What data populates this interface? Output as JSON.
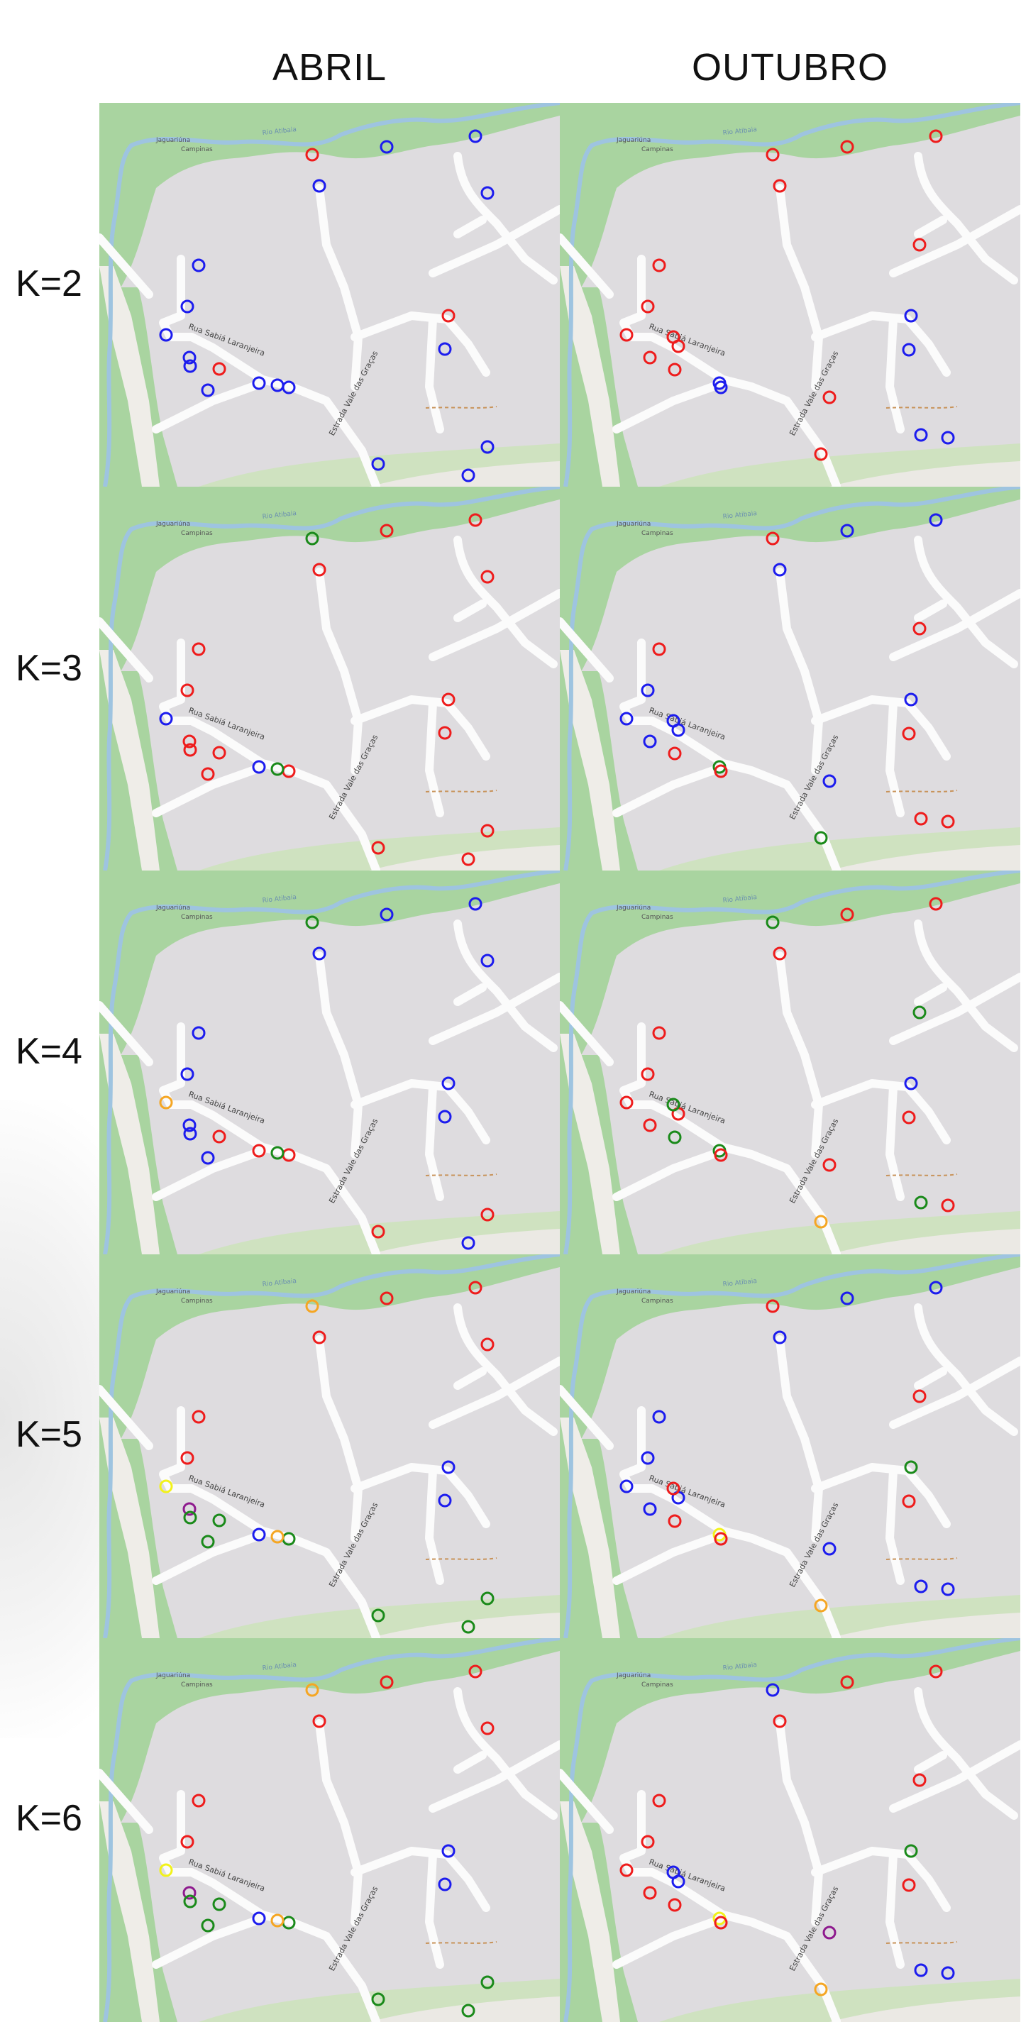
{
  "columns": [
    "ABRIL",
    "OUTUBRO"
  ],
  "colors": {
    "red": "#ee1c1c",
    "blue": "#1c1cee",
    "green": "#1a8a1a",
    "orange": "#f5a623",
    "yellow": "#f2f21a",
    "purple": "#8e1a8e"
  },
  "map_labels": {
    "street_1": "Rua Sabiá Laranjeira",
    "street_2": "Estrada Vale das Graças",
    "river": "Rio Atibaia",
    "area": "Jaguariúna",
    "area_2": "Campinas"
  },
  "rows": [
    {
      "label": "K=2",
      "abril": [
        "red",
        "blue",
        "blue",
        "blue",
        "blue",
        "blue",
        "blue",
        "blue",
        "blue",
        "red",
        "blue",
        "blue",
        "blue",
        "red",
        "blue",
        "blue",
        "blue",
        "blue",
        "blue",
        "blue"
      ],
      "outubro": [
        "red",
        "red",
        "red",
        "red",
        "red",
        "red",
        "red",
        "red",
        "red",
        "red",
        "red",
        "red",
        "blue",
        "blue",
        "blue",
        "blue",
        "blue",
        "blue",
        "red",
        "red"
      ]
    },
    {
      "label": "K=3",
      "abril": [
        "green",
        "red",
        "red",
        "red",
        "red",
        "red",
        "red",
        "blue",
        "red",
        "red",
        "blue",
        "red",
        "green",
        "red",
        "red",
        "red",
        "red",
        "red",
        "red",
        "red"
      ],
      "outubro": [
        "red",
        "blue",
        "blue",
        "blue",
        "red",
        "red",
        "blue",
        "blue",
        "blue",
        "blue",
        "blue",
        "red",
        "green",
        "blue",
        "red",
        "red",
        "red",
        "red",
        "green",
        "blue"
      ]
    },
    {
      "label": "K=4",
      "abril": [
        "green",
        "blue",
        "blue",
        "blue",
        "blue",
        "blue",
        "blue",
        "orange",
        "blue",
        "red",
        "red",
        "red",
        "green",
        "blue",
        "blue",
        "red",
        "red",
        "blue",
        "blue",
        "blue"
      ],
      "outubro": [
        "green",
        "red",
        "red",
        "red",
        "green",
        "red",
        "red",
        "red",
        "red",
        "red",
        "green",
        "green",
        "green",
        "blue",
        "red",
        "red",
        "green",
        "red",
        "orange",
        "red"
      ]
    },
    {
      "label": "K=5",
      "abril": [
        "orange",
        "red",
        "red",
        "red",
        "red",
        "red",
        "red",
        "yellow",
        "purple",
        "green",
        "blue",
        "green",
        "orange",
        "blue",
        "blue",
        "green",
        "green",
        "green",
        "green",
        "green"
      ],
      "outubro": [
        "red",
        "blue",
        "blue",
        "blue",
        "red",
        "blue",
        "blue",
        "blue",
        "blue",
        "blue",
        "red",
        "red",
        "yellow",
        "green",
        "red",
        "red",
        "blue",
        "blue",
        "orange",
        "blue"
      ]
    },
    {
      "label": "K=6",
      "abril": [
        "orange",
        "red",
        "red",
        "red",
        "red",
        "red",
        "red",
        "yellow",
        "purple",
        "green",
        "blue",
        "green",
        "orange",
        "blue",
        "blue",
        "green",
        "green",
        "green",
        "green",
        "green"
      ],
      "outubro": [
        "blue",
        "red",
        "red",
        "red",
        "red",
        "red",
        "red",
        "red",
        "red",
        "blue",
        "blue",
        "red",
        "yellow",
        "green",
        "red",
        "red",
        "blue",
        "blue",
        "orange",
        "purple"
      ]
    }
  ]
}
